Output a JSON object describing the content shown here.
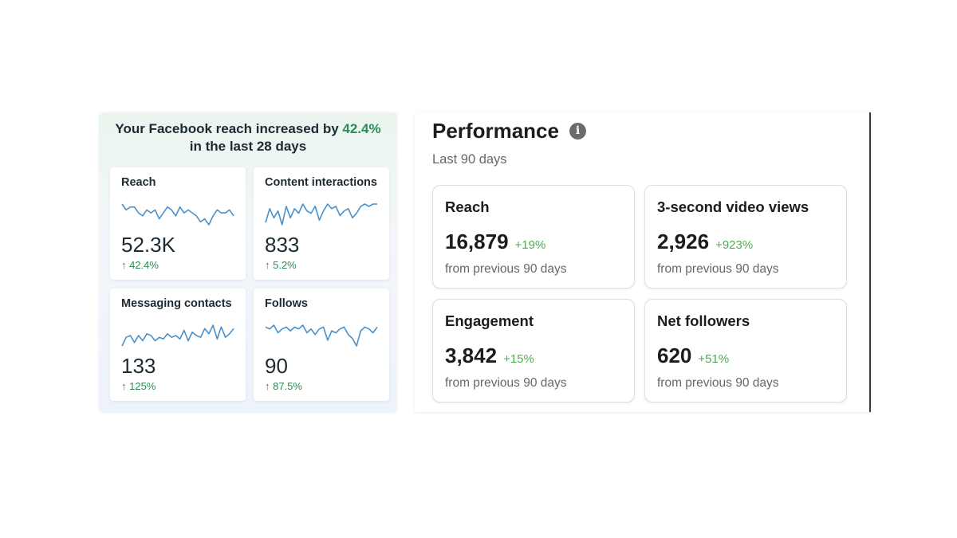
{
  "summary": {
    "headline_prefix": "Your Facebook reach increased by",
    "headline_percent": "42.4%",
    "headline_suffix": "in the last 28 days",
    "accent_color": "#2e8b57",
    "metrics": [
      {
        "label": "Reach",
        "value": "52.3K",
        "change": "↑ 42.4%",
        "trend": [
          9,
          7,
          8,
          8,
          6,
          5,
          7,
          6,
          7,
          4,
          6,
          8,
          7,
          5,
          8,
          6,
          7,
          6,
          5,
          3,
          4,
          2,
          5,
          7,
          6,
          6,
          7,
          5
        ]
      },
      {
        "label": "Content interactions",
        "value": "833",
        "change": "↑ 5.2%",
        "trend": [
          4,
          10,
          6,
          9,
          3,
          11,
          6,
          10,
          8,
          12,
          9,
          8,
          11,
          5,
          9,
          12,
          10,
          11,
          7,
          9,
          10,
          6,
          8,
          11,
          12,
          11,
          12,
          12
        ]
      },
      {
        "label": "Messaging contacts",
        "value": "133",
        "change": "↑ 125%",
        "trend": [
          3,
          8,
          9,
          5,
          9,
          6,
          10,
          9,
          6,
          8,
          7,
          10,
          8,
          9,
          7,
          12,
          6,
          11,
          9,
          8,
          13,
          10,
          15,
          7,
          14,
          8,
          10,
          13
        ]
      },
      {
        "label": "Follows",
        "value": "90",
        "change": "↑ 87.5%",
        "trend": [
          16,
          15,
          17,
          13,
          15,
          16,
          14,
          16,
          15,
          17,
          13,
          15,
          12,
          15,
          16,
          9,
          14,
          13,
          15,
          16,
          12,
          10,
          6,
          14,
          16,
          15,
          13,
          16
        ]
      }
    ]
  },
  "performance": {
    "title": "Performance",
    "period": "Last 90 days",
    "info_icon": "info-icon",
    "positive_color": "#4caf50",
    "cards": [
      {
        "label": "Reach",
        "value": "16,879",
        "change": "+19%",
        "note": "from previous 90 days"
      },
      {
        "label": "3-second video views",
        "value": "2,926",
        "change": "+923%",
        "note": "from previous 90 days"
      },
      {
        "label": "Engagement",
        "value": "3,842",
        "change": "+15%",
        "note": "from previous 90 days"
      },
      {
        "label": "Net followers",
        "value": "620",
        "change": "+51%",
        "note": "from previous 90 days"
      }
    ]
  }
}
